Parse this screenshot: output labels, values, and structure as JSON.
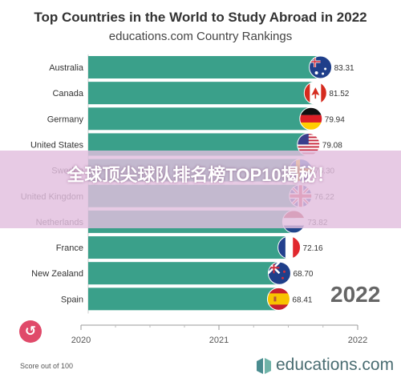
{
  "chart_data": {
    "type": "bar",
    "orientation": "horizontal",
    "title": "Top Countries in the World to Study Abroad in 2022",
    "subtitle": "educations.com Country Rankings",
    "categories": [
      "Australia",
      "Canada",
      "Germany",
      "United States",
      "Sweden",
      "United Kingdom",
      "Netherlands",
      "France",
      "New Zealand",
      "Spain"
    ],
    "values": [
      83.31,
      81.52,
      79.94,
      79.08,
      76.3,
      76.22,
      73.82,
      72.16,
      68.7,
      68.41
    ],
    "value_labels": [
      "83.31",
      "81.52",
      "79.94",
      "79.08",
      "76.30",
      "76.22",
      "73.82",
      "72.16",
      "68.70",
      "68.41"
    ],
    "flag_icons": [
      "australia-flag-icon",
      "canada-flag-icon",
      "germany-flag-icon",
      "united-states-flag-icon",
      "sweden-flag-icon",
      "united-kingdom-flag-icon",
      "netherlands-flag-icon",
      "france-flag-icon",
      "new-zealand-flag-icon",
      "spain-flag-icon"
    ],
    "bar_color": "#3aa08a",
    "xlim": [
      0,
      90
    ],
    "timeline": {
      "ticks": [
        "2020",
        "2021",
        "2022"
      ],
      "current": "2022"
    },
    "note": "Score out of 100"
  },
  "overlay": {
    "text": "全球顶尖球队排名榜TOP10揭秘！"
  },
  "brand": {
    "name": "educations.com"
  },
  "controls": {
    "replay_icon": "replay-icon"
  }
}
